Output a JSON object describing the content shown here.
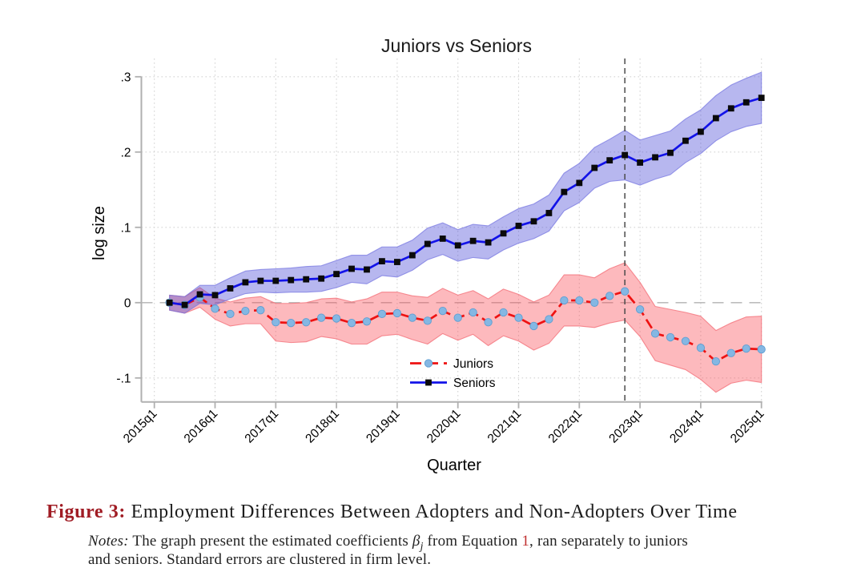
{
  "chart_data": {
    "type": "line",
    "title": "Juniors vs Seniors",
    "x_label": "Quarter",
    "y_label": "log size",
    "grid": true,
    "legend_position": "inside-bottom-center",
    "ylim": [
      -0.13,
      0.31
    ],
    "x_ticks": [
      "2015q1",
      "2016q1",
      "2017q1",
      "2018q1",
      "2019q1",
      "2020q1",
      "2021q1",
      "2022q1",
      "2023q1",
      "2024q1",
      "2025q1"
    ],
    "y_ticks": [
      {
        "label": ".3",
        "value": 0.3
      },
      {
        "label": ".2",
        "value": 0.2
      },
      {
        "label": ".1",
        "value": 0.1
      },
      {
        "label": "0",
        "value": 0
      },
      {
        "label": "-.1",
        "value": -0.1
      }
    ],
    "event_line": {
      "at": "2022q4"
    },
    "x": [
      "2015q2",
      "2015q3",
      "2015q4",
      "2016q1",
      "2016q2",
      "2016q3",
      "2016q4",
      "2017q1",
      "2017q2",
      "2017q3",
      "2017q4",
      "2018q1",
      "2018q2",
      "2018q3",
      "2018q4",
      "2019q1",
      "2019q2",
      "2019q3",
      "2019q4",
      "2020q1",
      "2020q2",
      "2020q3",
      "2020q4",
      "2021q1",
      "2021q2",
      "2021q3",
      "2021q4",
      "2022q1",
      "2022q2",
      "2022q3",
      "2022q4",
      "2023q1",
      "2023q2",
      "2023q3",
      "2023q4",
      "2024q1",
      "2024q2",
      "2024q3",
      "2024q4",
      "2025q1"
    ],
    "series": [
      {
        "name": "Juniors",
        "line_color": "#ee1212",
        "line_style": "dashed",
        "marker": "circle",
        "marker_color": "#85b7e3",
        "marker_edge": "#5e9ed2",
        "band_fill": "rgba(250,80,90,0.40)",
        "band_edge": "rgba(244,120,128,0.85)",
        "values": [
          0.0,
          -0.003,
          0.007,
          -0.008,
          -0.015,
          -0.011,
          -0.01,
          -0.026,
          -0.027,
          -0.026,
          -0.02,
          -0.021,
          -0.027,
          -0.025,
          -0.015,
          -0.014,
          -0.02,
          -0.024,
          -0.011,
          -0.02,
          -0.013,
          -0.026,
          -0.013,
          -0.02,
          -0.031,
          -0.022,
          0.003,
          0.003,
          0.0,
          0.009,
          0.015,
          -0.009,
          -0.041,
          -0.046,
          -0.051,
          -0.06,
          -0.078,
          -0.067,
          -0.061,
          -0.062
        ],
        "ci_high": [
          0.01,
          0.008,
          0.02,
          0.006,
          0.001,
          0.006,
          0.008,
          -0.001,
          -0.001,
          0.0,
          0.005,
          0.006,
          0.001,
          0.005,
          0.014,
          0.014,
          0.009,
          0.007,
          0.019,
          0.01,
          0.016,
          0.005,
          0.018,
          0.011,
          0.001,
          0.01,
          0.037,
          0.037,
          0.033,
          0.045,
          0.053,
          0.027,
          -0.005,
          -0.009,
          -0.013,
          -0.018,
          -0.037,
          -0.027,
          -0.019,
          -0.018
        ],
        "ci_low": [
          -0.01,
          -0.014,
          -0.006,
          -0.022,
          -0.031,
          -0.028,
          -0.028,
          -0.051,
          -0.053,
          -0.052,
          -0.045,
          -0.048,
          -0.055,
          -0.055,
          -0.044,
          -0.042,
          -0.049,
          -0.055,
          -0.041,
          -0.05,
          -0.042,
          -0.057,
          -0.044,
          -0.051,
          -0.063,
          -0.054,
          -0.031,
          -0.031,
          -0.033,
          -0.027,
          -0.023,
          -0.045,
          -0.077,
          -0.083,
          -0.089,
          -0.102,
          -0.119,
          -0.107,
          -0.103,
          -0.106
        ]
      },
      {
        "name": "Seniors",
        "line_color": "#1212e8",
        "line_style": "solid",
        "marker": "square",
        "marker_color": "#0a0a0a",
        "marker_edge": "#0a0a0a",
        "band_fill": "rgba(75,75,215,0.40)",
        "band_edge": "rgba(120,120,225,0.75)",
        "values": [
          0.0,
          -0.003,
          0.011,
          0.01,
          0.019,
          0.027,
          0.029,
          0.029,
          0.03,
          0.031,
          0.032,
          0.038,
          0.045,
          0.044,
          0.055,
          0.054,
          0.063,
          0.078,
          0.085,
          0.076,
          0.082,
          0.08,
          0.092,
          0.102,
          0.108,
          0.119,
          0.147,
          0.159,
          0.179,
          0.189,
          0.196,
          0.186,
          0.193,
          0.199,
          0.215,
          0.227,
          0.245,
          0.258,
          0.266,
          0.272
        ],
        "ci_high": [
          0.01,
          0.008,
          0.023,
          0.023,
          0.033,
          0.042,
          0.044,
          0.045,
          0.046,
          0.048,
          0.049,
          0.056,
          0.063,
          0.063,
          0.074,
          0.074,
          0.083,
          0.099,
          0.106,
          0.097,
          0.104,
          0.102,
          0.114,
          0.125,
          0.131,
          0.143,
          0.172,
          0.185,
          0.206,
          0.217,
          0.229,
          0.216,
          0.222,
          0.228,
          0.244,
          0.256,
          0.275,
          0.289,
          0.298,
          0.306
        ],
        "ci_low": [
          -0.01,
          -0.014,
          -0.001,
          -0.003,
          0.005,
          0.012,
          0.014,
          0.013,
          0.014,
          0.014,
          0.015,
          0.02,
          0.027,
          0.025,
          0.036,
          0.034,
          0.043,
          0.057,
          0.064,
          0.055,
          0.06,
          0.058,
          0.07,
          0.079,
          0.085,
          0.095,
          0.122,
          0.133,
          0.152,
          0.161,
          0.163,
          0.156,
          0.164,
          0.17,
          0.186,
          0.198,
          0.215,
          0.227,
          0.234,
          0.238
        ]
      }
    ]
  },
  "palette": {
    "grid": "#d4d4d4",
    "zero_line": "#b2b2b2",
    "event_line": "#4a4a4a",
    "axis": "#b0b0b0",
    "caption_label": "#a01c24",
    "equation_ref": "#c03030"
  },
  "caption": {
    "label": "Figure 3:",
    "text": "Employment Differences Between Adopters and Non-Adopters Over Time"
  },
  "notes": {
    "label": "Notes:",
    "line1_pre": " The graph present the estimated coefficients ",
    "beta": "β",
    "beta_sub": "j",
    "line1_mid": " from Equation ",
    "equation_ref": "1",
    "line1_post": ", ran separately to juniors",
    "line2": "and seniors. Standard errors are clustered in firm level."
  }
}
